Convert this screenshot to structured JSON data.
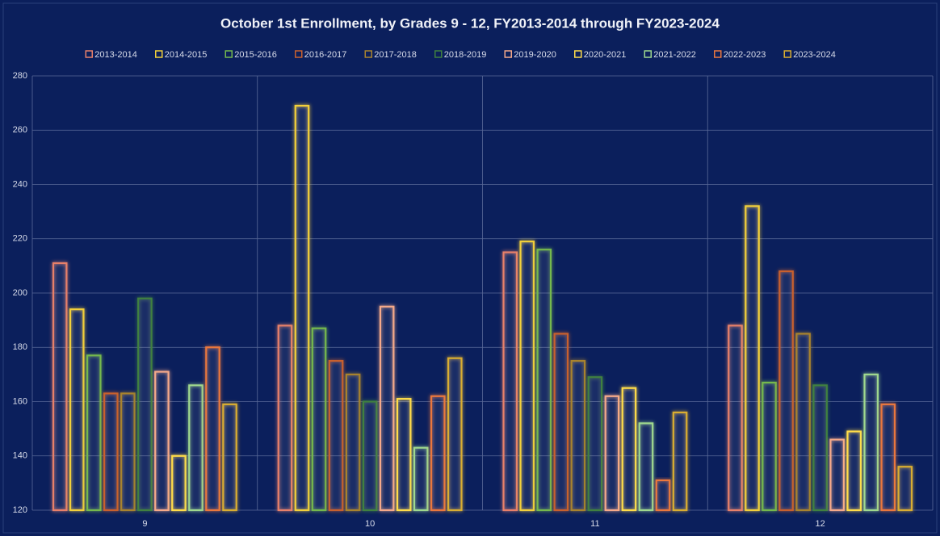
{
  "chart_data": {
    "type": "bar",
    "title": "October 1st Enrollment, by Grades 9 - 12, FY2013-2014 through FY2023-2024",
    "categories": [
      "9",
      "10",
      "11",
      "12"
    ],
    "series": [
      {
        "name": "2013-2014",
        "color": "#e8806a",
        "values": [
          211,
          188,
          215,
          188
        ]
      },
      {
        "name": "2014-2015",
        "color": "#f2cf3a",
        "values": [
          194,
          269,
          219,
          232
        ]
      },
      {
        "name": "2015-2016",
        "color": "#74b84e",
        "values": [
          177,
          187,
          216,
          167
        ]
      },
      {
        "name": "2016-2017",
        "color": "#c8602e",
        "values": [
          163,
          175,
          185,
          208
        ]
      },
      {
        "name": "2017-2018",
        "color": "#a8832e",
        "values": [
          163,
          170,
          175,
          185
        ]
      },
      {
        "name": "2018-2019",
        "color": "#3f8040",
        "values": [
          198,
          160,
          169,
          166
        ]
      },
      {
        "name": "2019-2020",
        "color": "#f5a98a",
        "values": [
          171,
          195,
          162,
          146
        ]
      },
      {
        "name": "2020-2021",
        "color": "#ffdc4a",
        "values": [
          140,
          161,
          165,
          149
        ]
      },
      {
        "name": "2021-2022",
        "color": "#9fd88e",
        "values": [
          166,
          143,
          152,
          170
        ]
      },
      {
        "name": "2022-2023",
        "color": "#ea773e",
        "values": [
          180,
          162,
          131,
          159
        ]
      },
      {
        "name": "2023-2024",
        "color": "#d9ad30",
        "values": [
          159,
          176,
          156,
          136
        ]
      }
    ],
    "ylim": [
      120,
      280
    ],
    "yticks": [
      120,
      140,
      160,
      180,
      200,
      220,
      240,
      260,
      280
    ],
    "grid": true
  }
}
